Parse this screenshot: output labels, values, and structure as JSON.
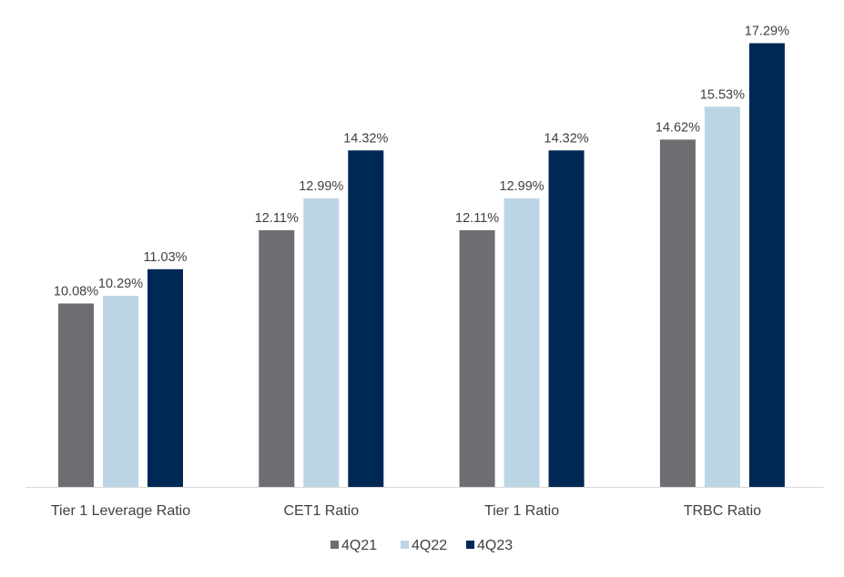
{
  "chart_data": {
    "type": "bar",
    "title": "",
    "xlabel": "",
    "ylabel": "",
    "ylim": [
      5,
      18
    ],
    "grid": false,
    "legend_position": "bottom",
    "categories": [
      "Tier 1 Leverage Ratio",
      "CET1 Ratio",
      "Tier 1 Ratio",
      "TRBC Ratio"
    ],
    "series": [
      {
        "name": "4Q21",
        "color": "#6d6e71",
        "values": [
          10.08,
          12.11,
          12.11,
          14.62
        ],
        "labels": [
          "10.08%",
          "12.11%",
          "12.11%",
          "14.62%"
        ]
      },
      {
        "name": "4Q22",
        "color": "#bcd5e5",
        "values": [
          10.29,
          12.99,
          12.99,
          15.53
        ],
        "labels": [
          "10.29%",
          "12.99%",
          "12.99%",
          "15.53%"
        ]
      },
      {
        "name": "4Q23",
        "color": "#002855",
        "values": [
          11.03,
          14.32,
          14.32,
          17.29
        ],
        "labels": [
          "11.03%",
          "14.32%",
          "14.32%",
          "17.29%"
        ]
      }
    ]
  }
}
